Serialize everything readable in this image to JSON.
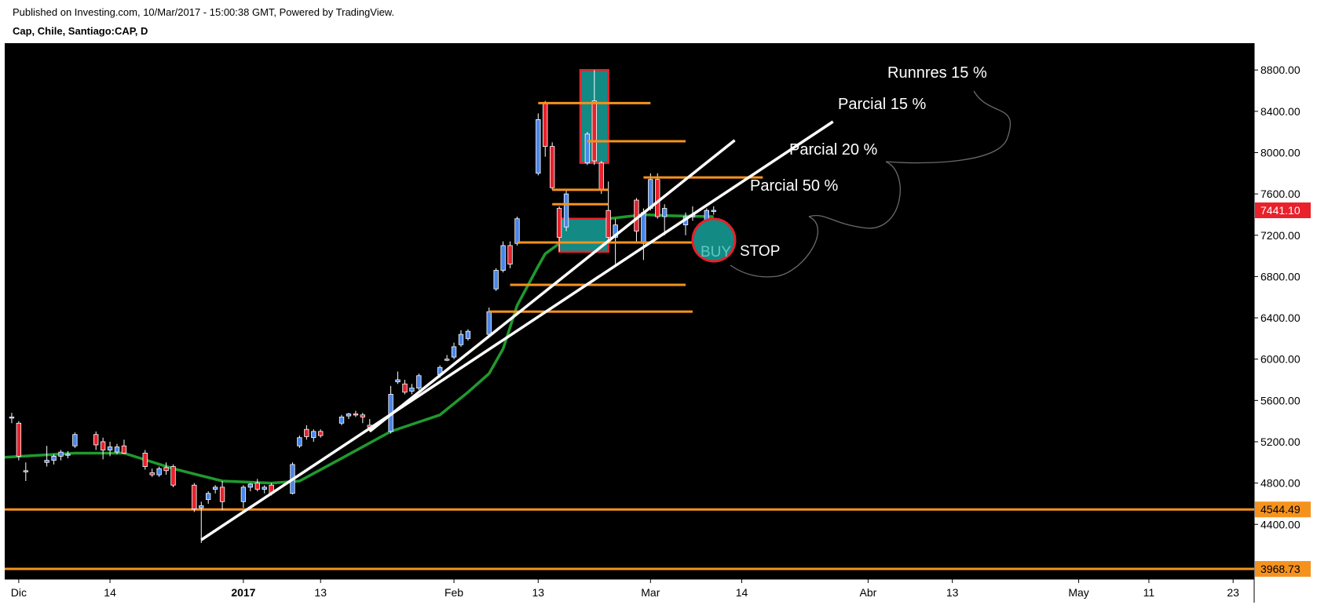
{
  "header": {
    "published": "Published on Investing.com, 10/Mar/2017 - 15:00:38 GMT, Powered by TradingView.",
    "symbol": "Cap, Chile, Santiago:CAP, D"
  },
  "colors": {
    "background": "#000000",
    "up": "#4a86e8",
    "down": "#e8212b",
    "ma": "#1f9a2e",
    "level": "#f5921e",
    "trend": "#ffffff",
    "zone": "#138a84"
  },
  "chart_data": {
    "type": "candlestick",
    "title": "Cap, Chile, Santiago:CAP, D",
    "y_axis": {
      "ticks": [
        "8800.00",
        "8400.00",
        "8000.00",
        "7600.00",
        "7200.00",
        "6800.00",
        "6400.00",
        "6000.00",
        "5600.00",
        "5200.00",
        "4800.00",
        "4400.00"
      ],
      "range": [
        3870,
        9060
      ]
    },
    "x_axis": {
      "ticks": [
        "Dic",
        "14",
        "2017",
        "13",
        "Feb",
        "13",
        "Mar",
        "14",
        "Abr",
        "13",
        "May",
        "11",
        "23"
      ],
      "range": [
        "2016-11-29",
        "2017-05-26"
      ]
    },
    "price_tags": [
      {
        "label": "7441.10",
        "value": 7441.1,
        "color": "#e8212b"
      },
      {
        "label": "4544.49",
        "value": 4544.49,
        "color": "#f5921e"
      },
      {
        "label": "3968.73",
        "value": 3968.73,
        "color": "#f5921e"
      }
    ],
    "horizontal_levels": [
      4544.49,
      3968.73
    ],
    "candles": [
      {
        "date": "2016-11-30",
        "o": 5440,
        "h": 5480,
        "l": 5380,
        "c": 5440
      },
      {
        "date": "2016-12-01",
        "o": 5380,
        "h": 5400,
        "l": 5020,
        "c": 5060
      },
      {
        "date": "2016-12-02",
        "o": 4920,
        "h": 5000,
        "l": 4820,
        "c": 4920
      },
      {
        "date": "2016-12-05",
        "o": 5000,
        "h": 5160,
        "l": 4960,
        "c": 5020
      },
      {
        "date": "2016-12-06",
        "o": 5020,
        "h": 5080,
        "l": 4980,
        "c": 5060
      },
      {
        "date": "2016-12-07",
        "o": 5060,
        "h": 5120,
        "l": 5020,
        "c": 5100
      },
      {
        "date": "2016-12-08",
        "o": 5080,
        "h": 5110,
        "l": 5040,
        "c": 5080
      },
      {
        "date": "2016-12-09",
        "o": 5160,
        "h": 5290,
        "l": 5140,
        "c": 5270
      },
      {
        "date": "2016-12-12",
        "o": 5270,
        "h": 5300,
        "l": 5120,
        "c": 5170
      },
      {
        "date": "2016-12-13",
        "o": 5200,
        "h": 5240,
        "l": 5030,
        "c": 5120
      },
      {
        "date": "2016-12-14",
        "o": 5120,
        "h": 5200,
        "l": 5060,
        "c": 5150
      },
      {
        "date": "2016-12-15",
        "o": 5100,
        "h": 5180,
        "l": 5080,
        "c": 5150
      },
      {
        "date": "2016-12-16",
        "o": 5160,
        "h": 5220,
        "l": 5080,
        "c": 5090
      },
      {
        "date": "2016-12-19",
        "o": 5090,
        "h": 5120,
        "l": 4930,
        "c": 4960
      },
      {
        "date": "2016-12-20",
        "o": 4900,
        "h": 4940,
        "l": 4860,
        "c": 4880
      },
      {
        "date": "2016-12-21",
        "o": 4880,
        "h": 4960,
        "l": 4860,
        "c": 4940
      },
      {
        "date": "2016-12-22",
        "o": 4950,
        "h": 5000,
        "l": 4880,
        "c": 4920
      },
      {
        "date": "2016-12-23",
        "o": 4960,
        "h": 4980,
        "l": 4760,
        "c": 4780
      },
      {
        "date": "2016-12-26",
        "o": 4780,
        "h": 4800,
        "l": 4520,
        "c": 4550
      },
      {
        "date": "2016-12-27",
        "o": 4560,
        "h": 4620,
        "l": 4220,
        "c": 4580
      },
      {
        "date": "2016-12-28",
        "o": 4640,
        "h": 4720,
        "l": 4600,
        "c": 4700
      },
      {
        "date": "2016-12-29",
        "o": 4740,
        "h": 4780,
        "l": 4700,
        "c": 4760
      },
      {
        "date": "2016-12-30",
        "o": 4760,
        "h": 4820,
        "l": 4540,
        "c": 4620
      },
      {
        "date": "2017-01-02",
        "o": 4620,
        "h": 4780,
        "l": 4560,
        "c": 4760
      },
      {
        "date": "2017-01-03",
        "o": 4760,
        "h": 4800,
        "l": 4720,
        "c": 4790
      },
      {
        "date": "2017-01-04",
        "o": 4800,
        "h": 4840,
        "l": 4720,
        "c": 4740
      },
      {
        "date": "2017-01-05",
        "o": 4740,
        "h": 4780,
        "l": 4700,
        "c": 4760
      },
      {
        "date": "2017-01-06",
        "o": 4780,
        "h": 4800,
        "l": 4680,
        "c": 4700
      },
      {
        "date": "2017-01-09",
        "o": 4700,
        "h": 5000,
        "l": 4690,
        "c": 4980
      },
      {
        "date": "2017-01-10",
        "o": 5160,
        "h": 5260,
        "l": 5140,
        "c": 5240
      },
      {
        "date": "2017-01-11",
        "o": 5320,
        "h": 5360,
        "l": 5220,
        "c": 5250
      },
      {
        "date": "2017-01-12",
        "o": 5240,
        "h": 5320,
        "l": 5200,
        "c": 5300
      },
      {
        "date": "2017-01-13",
        "o": 5300,
        "h": 5320,
        "l": 5240,
        "c": 5260
      },
      {
        "date": "2017-01-16",
        "o": 5380,
        "h": 5460,
        "l": 5360,
        "c": 5440
      },
      {
        "date": "2017-01-17",
        "o": 5450,
        "h": 5480,
        "l": 5420,
        "c": 5470
      },
      {
        "date": "2017-01-18",
        "o": 5470,
        "h": 5500,
        "l": 5440,
        "c": 5460
      },
      {
        "date": "2017-01-19",
        "o": 5460,
        "h": 5480,
        "l": 5380,
        "c": 5440
      },
      {
        "date": "2017-01-20",
        "o": 5360,
        "h": 5420,
        "l": 5300,
        "c": 5340
      },
      {
        "date": "2017-01-23",
        "o": 5300,
        "h": 5740,
        "l": 5280,
        "c": 5660
      },
      {
        "date": "2017-01-24",
        "o": 5780,
        "h": 5880,
        "l": 5760,
        "c": 5800
      },
      {
        "date": "2017-01-25",
        "o": 5760,
        "h": 5800,
        "l": 5660,
        "c": 5680
      },
      {
        "date": "2017-01-26",
        "o": 5690,
        "h": 5760,
        "l": 5660,
        "c": 5720
      },
      {
        "date": "2017-01-27",
        "o": 5720,
        "h": 5860,
        "l": 5700,
        "c": 5840
      },
      {
        "date": "2017-01-30",
        "o": 5850,
        "h": 5940,
        "l": 5820,
        "c": 5920
      },
      {
        "date": "2017-01-31",
        "o": 6000,
        "h": 6040,
        "l": 5980,
        "c": 5990
      },
      {
        "date": "2017-02-01",
        "o": 6020,
        "h": 6160,
        "l": 6000,
        "c": 6120
      },
      {
        "date": "2017-02-02",
        "o": 6140,
        "h": 6280,
        "l": 6120,
        "c": 6240
      },
      {
        "date": "2017-02-03",
        "o": 6200,
        "h": 6290,
        "l": 6180,
        "c": 6270
      },
      {
        "date": "2017-02-06",
        "o": 6240,
        "h": 6500,
        "l": 6220,
        "c": 6460
      },
      {
        "date": "2017-02-07",
        "o": 6680,
        "h": 6880,
        "l": 6660,
        "c": 6860
      },
      {
        "date": "2017-02-08",
        "o": 6860,
        "h": 7140,
        "l": 6840,
        "c": 7100
      },
      {
        "date": "2017-02-09",
        "o": 7100,
        "h": 7140,
        "l": 6880,
        "c": 6920
      },
      {
        "date": "2017-02-10",
        "o": 7120,
        "h": 7380,
        "l": 7100,
        "c": 7360
      },
      {
        "date": "2017-02-13",
        "o": 7800,
        "h": 8380,
        "l": 7780,
        "c": 8320
      },
      {
        "date": "2017-02-14",
        "o": 8480,
        "h": 8500,
        "l": 7960,
        "c": 8060
      },
      {
        "date": "2017-02-15",
        "o": 8060,
        "h": 8100,
        "l": 7640,
        "c": 7660
      },
      {
        "date": "2017-02-16",
        "o": 7460,
        "h": 7480,
        "l": 7040,
        "c": 7180
      },
      {
        "date": "2017-02-17",
        "o": 7280,
        "h": 7640,
        "l": 7240,
        "c": 7600
      },
      {
        "date": "2017-02-20",
        "o": 7900,
        "h": 8200,
        "l": 7880,
        "c": 8180
      },
      {
        "date": "2017-02-21",
        "o": 8500,
        "h": 8800,
        "l": 7880,
        "c": 7920
      },
      {
        "date": "2017-02-22",
        "o": 7900,
        "h": 7920,
        "l": 7600,
        "c": 7640
      },
      {
        "date": "2017-02-23",
        "o": 7440,
        "h": 7720,
        "l": 7160,
        "c": 7180
      },
      {
        "date": "2017-02-24",
        "o": 7180,
        "h": 7360,
        "l": 6920,
        "c": 7300
      },
      {
        "date": "2017-02-27",
        "o": 7540,
        "h": 7560,
        "l": 7140,
        "c": 7240
      },
      {
        "date": "2017-02-28",
        "o": 7120,
        "h": 7460,
        "l": 6960,
        "c": 7420
      },
      {
        "date": "2017-03-01",
        "o": 7460,
        "h": 7800,
        "l": 7440,
        "c": 7740
      },
      {
        "date": "2017-03-02",
        "o": 7740,
        "h": 7800,
        "l": 7360,
        "c": 7380
      },
      {
        "date": "2017-03-03",
        "o": 7380,
        "h": 7500,
        "l": 7200,
        "c": 7460
      },
      {
        "date": "2017-03-06",
        "o": 7300,
        "h": 7420,
        "l": 7200,
        "c": 7380
      },
      {
        "date": "2017-03-07",
        "o": 7380,
        "h": 7480,
        "l": 7340,
        "c": 7400
      },
      {
        "date": "2017-03-08",
        "o": 7260,
        "h": 7320,
        "l": 7200,
        "c": 7280
      },
      {
        "date": "2017-03-09",
        "o": 7240,
        "h": 7460,
        "l": 7160,
        "c": 7440
      },
      {
        "date": "2017-03-10",
        "o": 7440,
        "h": 7480,
        "l": 7400,
        "c": 7441.1
      }
    ],
    "moving_average": [
      [
        "2016-11-29",
        5050
      ],
      [
        "2016-12-09",
        5090
      ],
      [
        "2016-12-16",
        5090
      ],
      [
        "2016-12-23",
        4940
      ],
      [
        "2016-12-30",
        4820
      ],
      [
        "2017-01-06",
        4800
      ],
      [
        "2017-01-10",
        4820
      ],
      [
        "2017-01-16",
        5040
      ],
      [
        "2017-01-23",
        5300
      ],
      [
        "2017-01-30",
        5460
      ],
      [
        "2017-02-03",
        5680
      ],
      [
        "2017-02-06",
        5860
      ],
      [
        "2017-02-08",
        6100
      ],
      [
        "2017-02-10",
        6520
      ],
      [
        "2017-02-13",
        6900
      ],
      [
        "2017-02-14",
        7020
      ],
      [
        "2017-02-16",
        7120
      ],
      [
        "2017-02-20",
        7300
      ],
      [
        "2017-02-23",
        7360
      ],
      [
        "2017-02-28",
        7400
      ],
      [
        "2017-03-03",
        7390
      ],
      [
        "2017-03-10",
        7380
      ]
    ],
    "trend_lines": [
      {
        "from": [
          "2016-12-27",
          4250
        ],
        "to": [
          "2017-03-27",
          8300
        ]
      },
      {
        "from": [
          "2017-01-20",
          5300
        ],
        "to": [
          "2017-03-13",
          8120
        ]
      }
    ],
    "orange_segments": [
      {
        "from": "2017-02-06",
        "to": "2017-03-07",
        "y": 6460
      },
      {
        "from": "2017-02-09",
        "to": "2017-03-06",
        "y": 6720
      },
      {
        "from": "2017-02-10",
        "to": "2017-03-10",
        "y": 7130
      },
      {
        "from": "2017-02-13",
        "to": "2017-03-01",
        "y": 8480
      },
      {
        "from": "2017-02-15",
        "to": "2017-02-23",
        "y": 7500
      },
      {
        "from": "2017-02-15",
        "to": "2017-02-23",
        "y": 7640
      },
      {
        "from": "2017-02-20",
        "to": "2017-03-06",
        "y": 8110
      },
      {
        "from": "2017-02-28",
        "to": "2017-03-17",
        "y": 7760
      }
    ],
    "zones": [
      {
        "from": "2017-02-19",
        "to": "2017-02-23",
        "top": 8800,
        "bottom": 7900
      },
      {
        "from": "2017-02-16",
        "to": "2017-02-23",
        "top": 7360,
        "bottom": 7040
      }
    ],
    "annotations": [
      "Runnres 15 %",
      "Parcial 15 %",
      "Parcial 20 %",
      "Parcial 50 %",
      "BUY",
      "STOP"
    ]
  }
}
